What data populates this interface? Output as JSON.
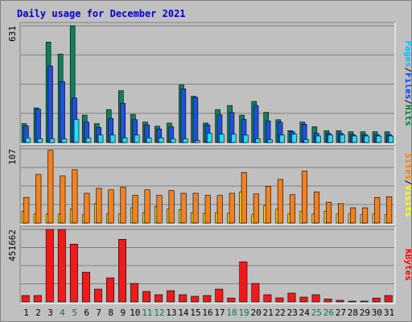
{
  "chart_data": {
    "type": "bar",
    "title": "Daily usage for December 2021",
    "x": [
      "1",
      "2",
      "3",
      "4",
      "5",
      "6",
      "7",
      "8",
      "9",
      "10",
      "11",
      "12",
      "13",
      "14",
      "15",
      "16",
      "17",
      "18",
      "19",
      "20",
      "21",
      "22",
      "23",
      "24",
      "25",
      "26",
      "27",
      "28",
      "29",
      "30",
      "31"
    ],
    "weekend_days": [
      "4",
      "5",
      "11",
      "12",
      "18",
      "19",
      "25",
      "26"
    ],
    "panels": [
      {
        "id": "hits-files-pages",
        "max_label": "631",
        "ylim": [
          0,
          631
        ],
        "right_labels": [
          {
            "text": "Pages",
            "color": "#00c0ff"
          },
          {
            "text": "Files",
            "color": "#0040ff"
          },
          {
            "text": "Hits",
            "color": "#008040"
          }
        ],
        "series": [
          {
            "name": "Hits",
            "color": "#10805c",
            "values": [
              102,
              187,
              543,
              478,
              631,
              148,
              102,
              178,
              280,
              152,
              110,
              88,
              105,
              311,
              250,
              105,
              178,
              200,
              148,
              222,
              163,
              123,
              64,
              110,
              85,
              64,
              64,
              58,
              58,
              58,
              58
            ]
          },
          {
            "name": "Files",
            "color": "#1f4fe0",
            "values": [
              90,
              180,
              413,
              329,
              240,
              110,
              81,
              130,
              212,
              123,
              95,
              73,
              85,
              290,
              244,
              95,
              150,
              162,
              125,
              200,
              117,
              110,
              58,
              99,
              50,
              50,
              50,
              43,
              43,
              43,
              43
            ]
          },
          {
            "name": "Pages",
            "color": "#1ee0f5",
            "values": [
              25,
              20,
              20,
              20,
              125,
              25,
              40,
              40,
              25,
              40,
              25,
              25,
              20,
              20,
              10,
              50,
              45,
              45,
              40,
              20,
              15,
              40,
              45,
              15,
              35,
              40,
              40,
              35,
              35,
              35,
              35
            ]
          }
        ]
      },
      {
        "id": "visits-sites",
        "max_label": "107",
        "ylim": [
          0,
          107
        ],
        "right_labels": [
          {
            "text": "Sites",
            "color": "#ff8000"
          },
          {
            "text": "Visits",
            "color": "#ffff00"
          }
        ],
        "series": [
          {
            "name": "Visits",
            "color": "#f0d818",
            "values": [
              17,
              13,
              13,
              13,
              20,
              12,
              28,
              13,
              13,
              22,
              15,
              24,
              20,
              19,
              15,
              14,
              15,
              14,
              45,
              12,
              25,
              20,
              13,
              17,
              13,
              17,
              13,
              13,
              12,
              13,
              12
            ]
          },
          {
            "name": "Sites",
            "color": "#f5801f",
            "values": [
              37,
              70,
              105,
              68,
              77,
              43,
              50,
              48,
              52,
              40,
              48,
              40,
              47,
              43,
              43,
              40,
              40,
              43,
              73,
              42,
              53,
              63,
              41,
              75,
              45,
              30,
              28,
              22,
              22,
              37,
              38
            ]
          }
        ]
      },
      {
        "id": "kbytes",
        "max_label": "451662",
        "ylim": [
          0,
          451662
        ],
        "right_labels": [
          {
            "text": "KBytes",
            "color": "#ff0000"
          }
        ],
        "series": [
          {
            "name": "KBytes",
            "color": "#f01a1a",
            "values": [
              40000,
              40000,
              451662,
              451662,
              360000,
              185000,
              80000,
              150000,
              390000,
              115000,
              65000,
              45000,
              70000,
              45000,
              35000,
              40000,
              80000,
              24000,
              250000,
              115000,
              45000,
              25000,
              55000,
              30000,
              45000,
              18000,
              10000,
              5000,
              5000,
              24000,
              40000
            ]
          }
        ]
      }
    ]
  }
}
